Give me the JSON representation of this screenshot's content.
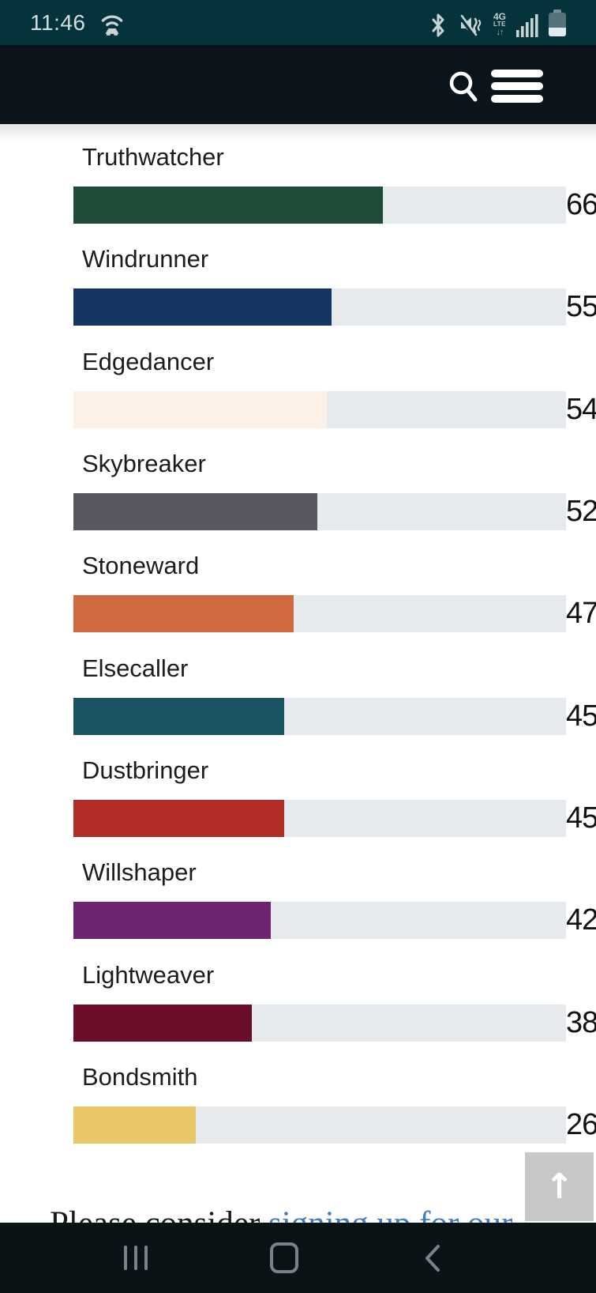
{
  "status_bar": {
    "time": "11:46",
    "bg_color": "#05333c",
    "icons": [
      "wifi-calling-icon",
      "bluetooth-icon",
      "mute-vibrate-icon",
      "lte-data-icon",
      "signal-strength-icon",
      "battery-icon"
    ],
    "lte_top": "4G",
    "lte_bottom": "LTE",
    "lte_arrows": "↓↑"
  },
  "header": {
    "bg_color": "#0b141a",
    "icons": [
      "search-icon",
      "hamburger-menu-icon"
    ]
  },
  "chart_data": {
    "type": "bar",
    "orientation": "horizontal",
    "categories": [
      "Truthwatcher",
      "Windrunner",
      "Edgedancer",
      "Skybreaker",
      "Stoneward",
      "Elsecaller",
      "Dustbringer",
      "Willshaper",
      "Lightweaver",
      "Bondsmith"
    ],
    "values": [
      66,
      55,
      54,
      52,
      47,
      45,
      45,
      42,
      38,
      26
    ],
    "bar_colors": [
      "#1f4b39",
      "#14355f",
      "#fdf0e6",
      "#5a5760",
      "#d06a3e",
      "#1a5463",
      "#b32d27",
      "#6d2471",
      "#6a0e29",
      "#e9c766"
    ],
    "track_color": "#e7eaec",
    "xlim": [
      0,
      105
    ],
    "grid": false,
    "value_labels_shown": true,
    "title": "",
    "xlabel": "",
    "ylabel": ""
  },
  "scroll_top_button": {
    "arrow": "↑"
  },
  "footer": {
    "prefix_text": "Please consider ",
    "link_text": "signing up for our",
    "link_color": "#3d7ac0"
  },
  "nav_bar": {
    "items": [
      "recents",
      "home",
      "back"
    ]
  }
}
